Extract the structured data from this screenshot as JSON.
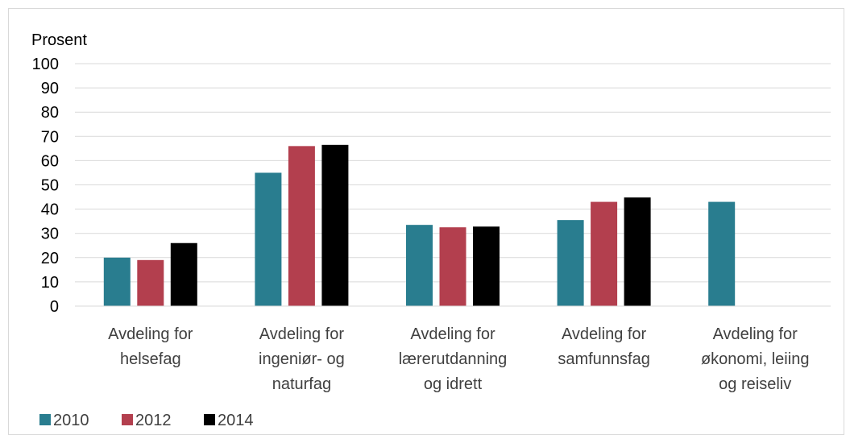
{
  "chart_data": {
    "type": "bar",
    "ylabel": "Prosent",
    "ylim": [
      0,
      100
    ],
    "yticks": [
      0,
      10,
      20,
      30,
      40,
      50,
      60,
      70,
      80,
      90,
      100
    ],
    "grid": true,
    "legend_position": "bottom-left",
    "categories": [
      [
        "Avdeling for",
        "helsefag"
      ],
      [
        "Avdeling for",
        "ingeniør- og",
        "naturfag"
      ],
      [
        "Avdeling for",
        "lærerutdanning",
        "og idrett"
      ],
      [
        "Avdeling for",
        "samfunnsfag"
      ],
      [
        "Avdeling for",
        "økonomi, leiing",
        "og reiseliv"
      ]
    ],
    "series": [
      {
        "name": "2010",
        "color": "#297d8f",
        "values": [
          20,
          55,
          33.5,
          35.5,
          43
        ]
      },
      {
        "name": "2012",
        "color": "#b33f4e",
        "values": [
          19,
          66,
          32.5,
          43,
          null
        ]
      },
      {
        "name": "2014",
        "color": "#000000",
        "values": [
          26,
          66.5,
          32.8,
          44.8,
          null
        ]
      }
    ]
  }
}
